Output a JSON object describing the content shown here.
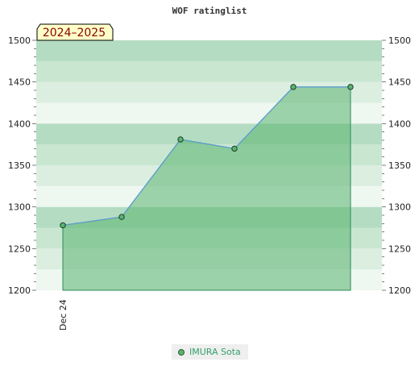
{
  "chart_data": {
    "type": "area",
    "title": "WOF ratinglist",
    "season_label": "2024–2025",
    "ylim": [
      1200,
      1500
    ],
    "yticks": [
      1200,
      1250,
      1300,
      1350,
      1400,
      1450,
      1500
    ],
    "x_tick_labels": [
      "Dec 24"
    ],
    "series": [
      {
        "name": "IMURA Sota",
        "color": "#59b470",
        "points": [
          {
            "x": 0,
            "y": 1278
          },
          {
            "x": 1,
            "y": 1288
          },
          {
            "x": 2,
            "y": 1381
          },
          {
            "x": 3,
            "y": 1370
          },
          {
            "x": 4,
            "y": 1444
          },
          {
            "x": 5,
            "y": 1444
          }
        ]
      }
    ],
    "grid": true,
    "legend": "bottom-center"
  }
}
